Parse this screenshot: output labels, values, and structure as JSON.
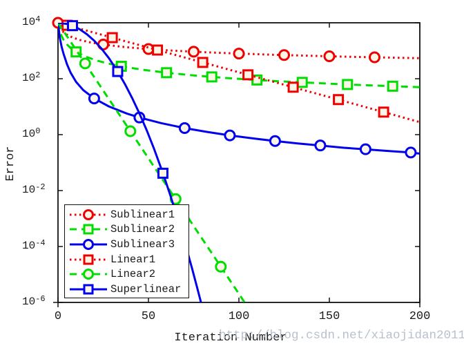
{
  "watermark": {
    "text": "http://blog.csdn.net/xiaojidan2011",
    "color": "#b0bac8"
  },
  "palette": {
    "red": "#ee0000",
    "green": "#00dd00",
    "blue": "#0000ee",
    "marker_face": "#fbf5e6",
    "axis": "#111111"
  },
  "chart_data": {
    "type": "line",
    "title": "",
    "xlabel": "Iteration Number",
    "ylabel": "Error",
    "x_range": [
      0,
      200
    ],
    "x_ticks": [
      0,
      50,
      100,
      150,
      200
    ],
    "y_scale": "log10",
    "y_exp_max": 4,
    "y_exp_min": -6,
    "y_tick_exponents": [
      4,
      2,
      0,
      -2,
      -4,
      -6
    ],
    "grid": false,
    "legend_position": "lower-left",
    "series": [
      {
        "name": "Sublinear1",
        "color": "#ee0000",
        "line_style": "dotted",
        "marker": "circle",
        "line_points": [
          [
            0,
            10000
          ],
          [
            1,
            6830
          ],
          [
            2,
            5470
          ],
          [
            3,
            4665
          ],
          [
            5,
            3733
          ],
          [
            8,
            2987
          ],
          [
            12,
            2440
          ],
          [
            18,
            1980
          ],
          [
            25,
            1668
          ],
          [
            37,
            1350
          ],
          [
            50,
            1151
          ],
          [
            62,
            1023
          ],
          [
            75,
            923
          ],
          [
            87,
            851
          ],
          [
            100,
            790
          ],
          [
            112,
            742
          ],
          [
            125,
            700
          ],
          [
            137,
            666
          ],
          [
            150,
            634
          ],
          [
            162,
            608
          ],
          [
            175,
            583
          ],
          [
            187,
            562
          ],
          [
            200,
            542
          ]
        ],
        "marker_points": [
          [
            0,
            10000
          ],
          [
            25,
            1668
          ],
          [
            50,
            1151
          ],
          [
            75,
            923
          ],
          [
            100,
            790
          ],
          [
            125,
            700
          ],
          [
            150,
            634
          ],
          [
            175,
            583
          ]
        ]
      },
      {
        "name": "Sublinear2",
        "color": "#00dd00",
        "line_style": "dashed",
        "marker": "square",
        "line_points": [
          [
            0,
            10000
          ],
          [
            1,
            5000
          ],
          [
            2,
            3333
          ],
          [
            3,
            2500
          ],
          [
            5,
            1667
          ],
          [
            7,
            1250
          ],
          [
            10,
            909
          ],
          [
            15,
            625
          ],
          [
            22,
            435
          ],
          [
            28,
            345
          ],
          [
            35,
            278
          ],
          [
            47,
            208
          ],
          [
            60,
            164
          ],
          [
            72,
            137
          ],
          [
            85,
            116
          ],
          [
            97,
            102
          ],
          [
            110,
            90
          ],
          [
            122,
            81
          ],
          [
            135,
            74
          ],
          [
            147,
            68
          ],
          [
            160,
            62
          ],
          [
            172,
            58
          ],
          [
            185,
            54
          ],
          [
            200,
            50
          ]
        ],
        "marker_points": [
          [
            10,
            909
          ],
          [
            35,
            278
          ],
          [
            60,
            164
          ],
          [
            85,
            116
          ],
          [
            110,
            90
          ],
          [
            135,
            74
          ],
          [
            160,
            62
          ],
          [
            185,
            54
          ]
        ]
      },
      {
        "name": "Sublinear3",
        "color": "#0000ee",
        "line_style": "solid",
        "marker": "circle",
        "line_points": [
          [
            0,
            10000
          ],
          [
            1,
            2934
          ],
          [
            2,
            1405
          ],
          [
            3,
            796
          ],
          [
            5,
            326
          ],
          [
            7,
            164
          ],
          [
            10,
            77
          ],
          [
            14,
            39
          ],
          [
            20,
            19.7
          ],
          [
            28,
            10.3
          ],
          [
            38,
            5.7
          ],
          [
            45,
            4.1
          ],
          [
            57,
            2.58
          ],
          [
            70,
            1.72
          ],
          [
            82,
            1.26
          ],
          [
            95,
            0.94
          ],
          [
            108,
            0.73
          ],
          [
            120,
            0.59
          ],
          [
            133,
            0.48
          ],
          [
            145,
            0.41
          ],
          [
            158,
            0.34
          ],
          [
            170,
            0.3
          ],
          [
            183,
            0.26
          ],
          [
            195,
            0.23
          ],
          [
            200,
            0.21
          ]
        ],
        "marker_points": [
          [
            20,
            19.7
          ],
          [
            45,
            4.1
          ],
          [
            70,
            1.72
          ],
          [
            95,
            0.94
          ],
          [
            120,
            0.59
          ],
          [
            145,
            0.41
          ],
          [
            170,
            0.3
          ],
          [
            195,
            0.23
          ]
        ]
      },
      {
        "name": "Linear1",
        "color": "#ee0000",
        "line_style": "dotted",
        "marker": "square",
        "line_points": [
          [
            0,
            10000
          ],
          [
            5,
            8154
          ],
          [
            30,
            2939
          ],
          [
            55,
            1059
          ],
          [
            80,
            382
          ],
          [
            105,
            138
          ],
          [
            130,
            49.7
          ],
          [
            155,
            17.9
          ],
          [
            180,
            6.4
          ],
          [
            200,
            2.8
          ]
        ],
        "marker_points": [
          [
            5,
            8154
          ],
          [
            30,
            2939
          ],
          [
            55,
            1059
          ],
          [
            80,
            382
          ],
          [
            105,
            138
          ],
          [
            130,
            49.7
          ],
          [
            155,
            17.9
          ],
          [
            180,
            6.4
          ]
        ]
      },
      {
        "name": "Linear2",
        "color": "#00dd00",
        "line_style": "dashed",
        "marker": "circle",
        "line_points": [
          [
            0,
            10000
          ],
          [
            15,
            352
          ],
          [
            40,
            1.33
          ],
          [
            65,
            0.005
          ],
          [
            90,
            1.9e-05
          ],
          [
            104,
            8.3e-07
          ]
        ],
        "marker_points": [
          [
            15,
            352
          ],
          [
            40,
            1.33
          ],
          [
            65,
            0.005
          ],
          [
            90,
            1.9e-05
          ]
        ]
      },
      {
        "name": "Superlinear",
        "color": "#0000ee",
        "line_style": "solid",
        "marker": "square",
        "line_points": [
          [
            0,
            10000
          ],
          [
            5,
            9120
          ],
          [
            8,
            7897
          ],
          [
            12,
            5875
          ],
          [
            16,
            3899
          ],
          [
            20,
            2291
          ],
          [
            24,
            1197
          ],
          [
            28,
            557
          ],
          [
            33,
            181
          ],
          [
            37,
            64.6
          ],
          [
            41,
            20.4
          ],
          [
            45,
            5.75
          ],
          [
            49,
            1.45
          ],
          [
            53,
            0.32
          ],
          [
            58,
            0.0417
          ],
          [
            62,
            0.0071
          ],
          [
            66,
            0.00107
          ],
          [
            70,
            0.000145
          ],
          [
            74,
            1.74e-05
          ],
          [
            77,
            3.24e-06
          ],
          [
            80,
            5.8e-07
          ]
        ],
        "marker_points": [
          [
            8,
            7897
          ],
          [
            33,
            181
          ],
          [
            58,
            0.0417
          ]
        ]
      }
    ]
  }
}
